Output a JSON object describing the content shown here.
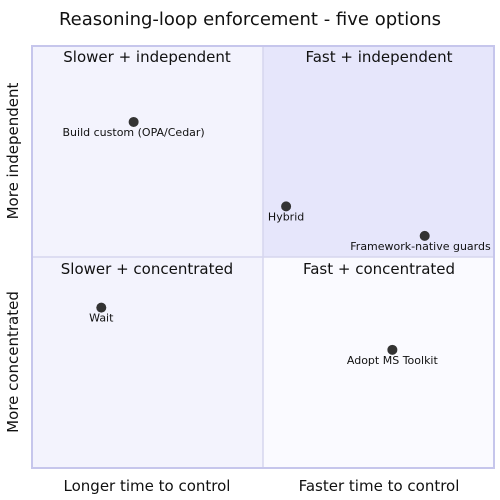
{
  "chart_data": {
    "type": "scatter",
    "title": "Reasoning-loop enforcement - five options",
    "xlabel_left": "Longer time to control",
    "xlabel_right": "Faster time to control",
    "ylabel_bottom": "More concentrated",
    "ylabel_top": "More independent",
    "xlim": [
      0,
      1
    ],
    "ylim": [
      0,
      1
    ],
    "quadrants": [
      {
        "id": "q1",
        "label": "Fast + independent",
        "fill": "#e6e6fb"
      },
      {
        "id": "q2",
        "label": "Slower + independent",
        "fill": "#f3f3fd"
      },
      {
        "id": "q3",
        "label": "Slower + concentrated",
        "fill": "#f3f3fd"
      },
      {
        "id": "q4",
        "label": "Fast + concentrated",
        "fill": "#fafaff"
      }
    ],
    "points": [
      {
        "label": "Build custom (OPA/Cedar)",
        "x": 0.22,
        "y": 0.82
      },
      {
        "label": "Hybrid",
        "x": 0.55,
        "y": 0.62
      },
      {
        "label": "Framework-native guards",
        "x": 0.85,
        "y": 0.55
      },
      {
        "label": "Wait",
        "x": 0.15,
        "y": 0.38
      },
      {
        "label": "Adopt MS Toolkit",
        "x": 0.78,
        "y": 0.28
      }
    ],
    "colors": {
      "border": "#c6c6ec",
      "divider": "#d6d6ee",
      "point": "#333333",
      "text": "#111111"
    }
  }
}
